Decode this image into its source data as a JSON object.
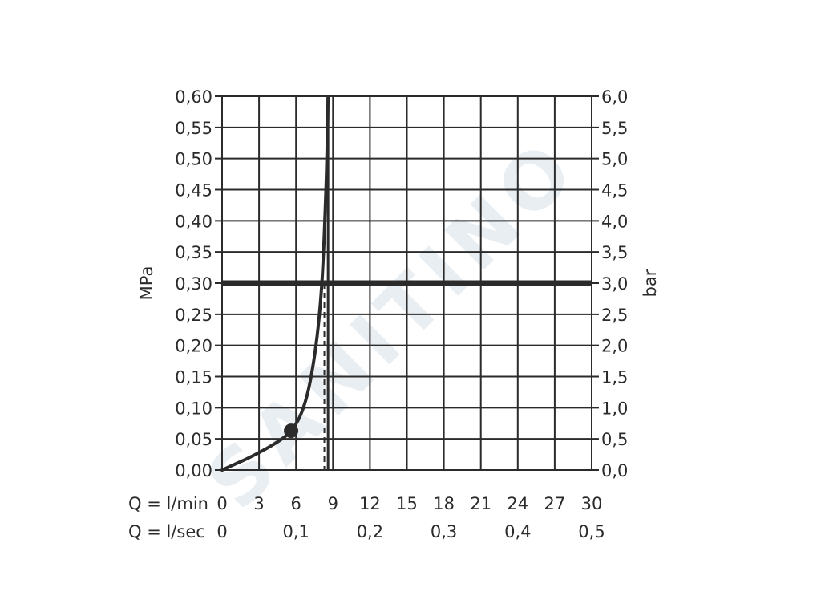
{
  "watermark": "SANITINO",
  "chart_data": {
    "type": "line",
    "y_left_label": "MPa",
    "y_right_label": "bar",
    "x_row1_label": "Q = l/min",
    "x_row2_label": "Q = l/sec",
    "xlim": [
      0,
      30
    ],
    "ylim": [
      0,
      0.6
    ],
    "grid": true,
    "y_left_ticks": [
      "0,00",
      "0,05",
      "0,10",
      "0,15",
      "0,20",
      "0,25",
      "0,30",
      "0,35",
      "0,40",
      "0,45",
      "0,50",
      "0,55",
      "0,60"
    ],
    "y_right_ticks": [
      "0,0",
      "0,5",
      "1,0",
      "1,5",
      "2,0",
      "2,5",
      "3,0",
      "3,5",
      "4,0",
      "4,5",
      "5,0",
      "5,5",
      "6,0"
    ],
    "x_ticks_lmin": [
      "0",
      "3",
      "6",
      "9",
      "12",
      "15",
      "18",
      "21",
      "24",
      "27",
      "30"
    ],
    "x_ticks_lsec": [
      {
        "value": 0,
        "label": "0"
      },
      {
        "value": 6,
        "label": "0,1"
      },
      {
        "value": 12,
        "label": "0,2"
      },
      {
        "value": 18,
        "label": "0,3"
      },
      {
        "value": 24,
        "label": "0,4"
      },
      {
        "value": 30,
        "label": "0,5"
      }
    ],
    "series": [
      {
        "x": [
          0,
          1,
          2,
          3,
          4,
          5,
          5.6,
          6.3,
          6.9,
          7.4,
          7.8,
          8.1,
          8.3,
          8.45,
          8.55,
          8.6
        ],
        "y": [
          0.0,
          0.009,
          0.018,
          0.028,
          0.039,
          0.052,
          0.063,
          0.085,
          0.12,
          0.17,
          0.23,
          0.3,
          0.38,
          0.46,
          0.54,
          0.6
        ]
      }
    ],
    "reference_lines": [
      {
        "axis": "y",
        "value": 0.3,
        "style": "thick"
      },
      {
        "axis": "x",
        "value": 8.6,
        "style": "solid"
      },
      {
        "axis": "x",
        "value": 8.3,
        "style": "dashed"
      }
    ],
    "marker": {
      "x": 5.6,
      "y": 0.063
    }
  }
}
